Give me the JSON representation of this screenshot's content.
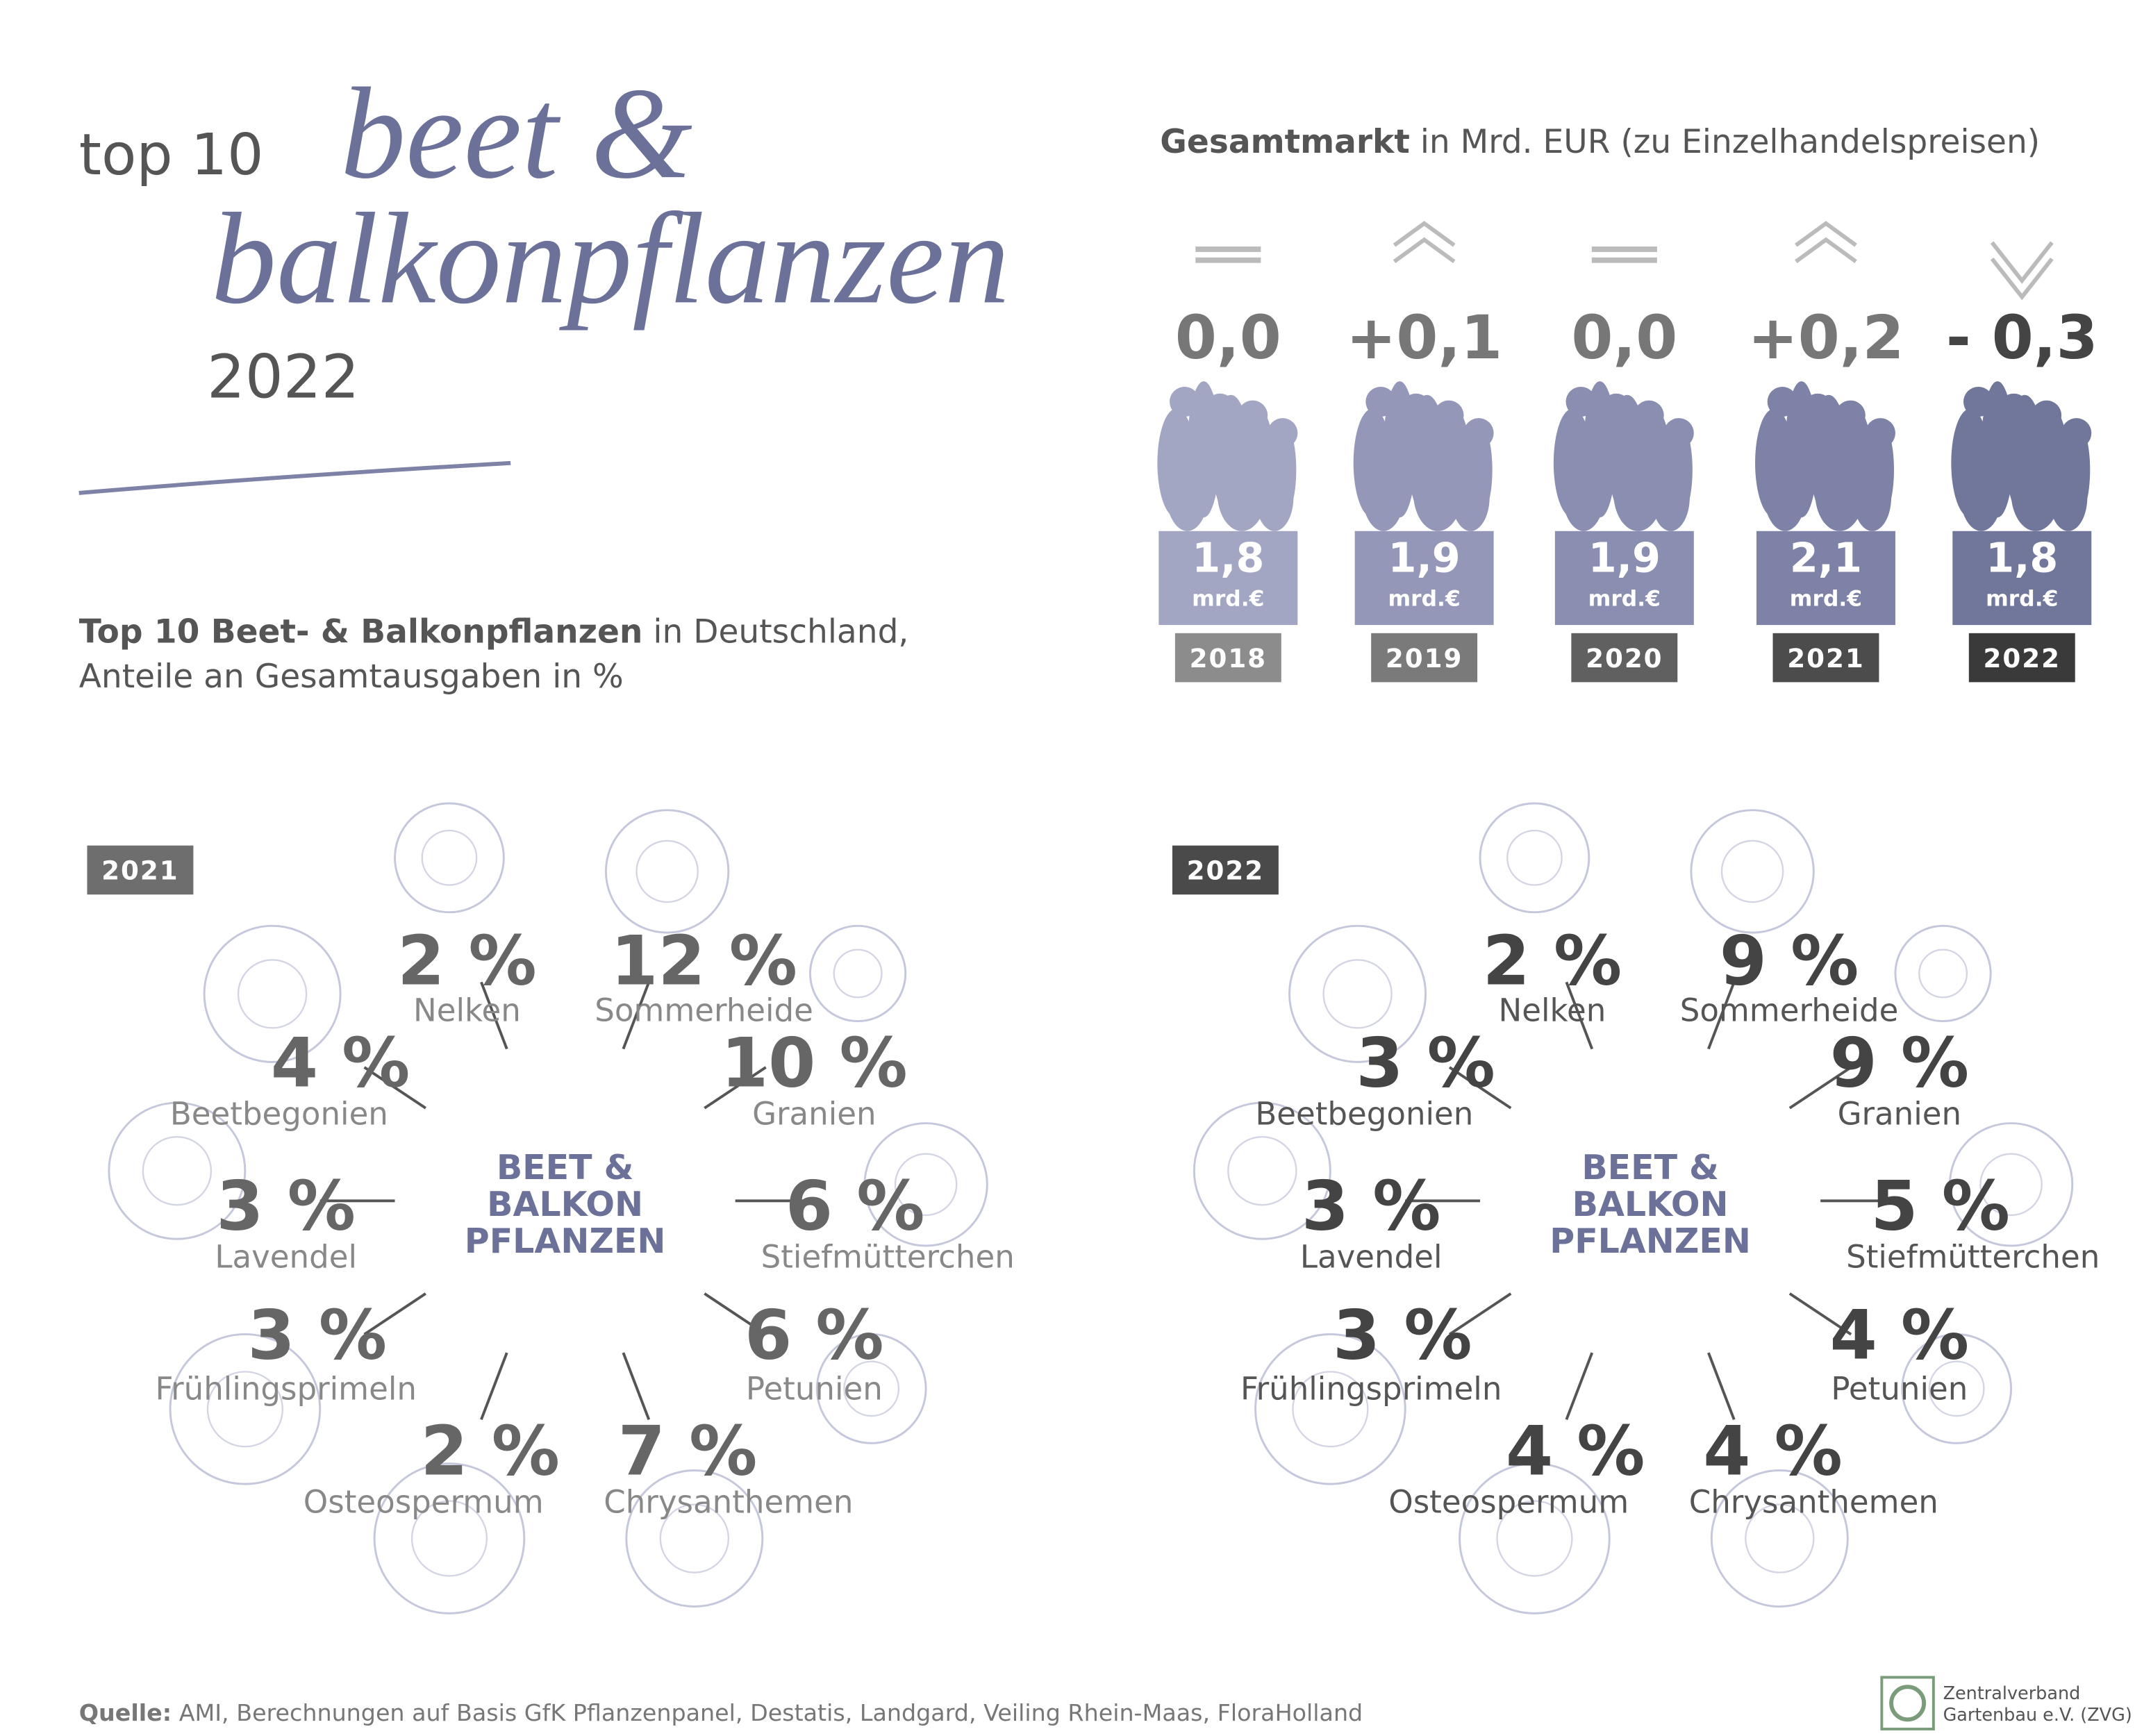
{
  "header": {
    "prefix": "top 10",
    "script_line1": "beet &",
    "script_line2": "balkonpflanzen",
    "year": "2022"
  },
  "market": {
    "title_bold": "Gesamtmarkt",
    "title_rest": "in Mrd. EUR (zu Einzelhandelspreisen)",
    "unit": "mrd.€",
    "years": [
      {
        "year": "2018",
        "change": "0,0",
        "value": "1,8",
        "trend": "equal"
      },
      {
        "year": "2019",
        "change": "+0,1",
        "value": "1,9",
        "trend": "up"
      },
      {
        "year": "2020",
        "change": "0,0",
        "value": "1,9",
        "trend": "equal"
      },
      {
        "year": "2021",
        "change": "+0,2",
        "value": "2,1",
        "trend": "up"
      },
      {
        "year": "2022",
        "change": "- 0,3",
        "value": "1,8",
        "trend": "down"
      }
    ]
  },
  "subtitle": {
    "bold": "Top 10 Beet- & Balkonpflanzen",
    "rest": "in Deutschland,",
    "line2": "Anteile an Gesamtausgaben in %"
  },
  "center_label": [
    "BEET &",
    "BALKON",
    "PFLANZEN"
  ],
  "plants": [
    "Nelken",
    "Sommerheide",
    "Beetbegonien",
    "Granien",
    "Lavendel",
    "Stiefmütterchen",
    "Frühlingsprimeln",
    "Petunien",
    "Osteospermum",
    "Chrysanthemen"
  ],
  "panels": [
    {
      "year": "2021",
      "shares": [
        "2 %",
        "12 %",
        "4 %",
        "10 %",
        "3 %",
        "6 %",
        "3 %",
        "6 %",
        "2 %",
        "7 %"
      ]
    },
    {
      "year": "2022",
      "shares": [
        "2 %",
        "9 %",
        "3 %",
        "9 %",
        "3 %",
        "5 %",
        "3 %",
        "4 %",
        "4 %",
        "4 %"
      ]
    }
  ],
  "source": {
    "label": "Quelle:",
    "text": "AMI, Berechnungen auf Basis GfK Pflanzenpanel, Destatis, Landgard, Veiling Rhein-Maas, FloraHolland"
  },
  "logo": [
    "Zentralverband",
    "Gartenbau e.V. (ZVG)"
  ]
}
